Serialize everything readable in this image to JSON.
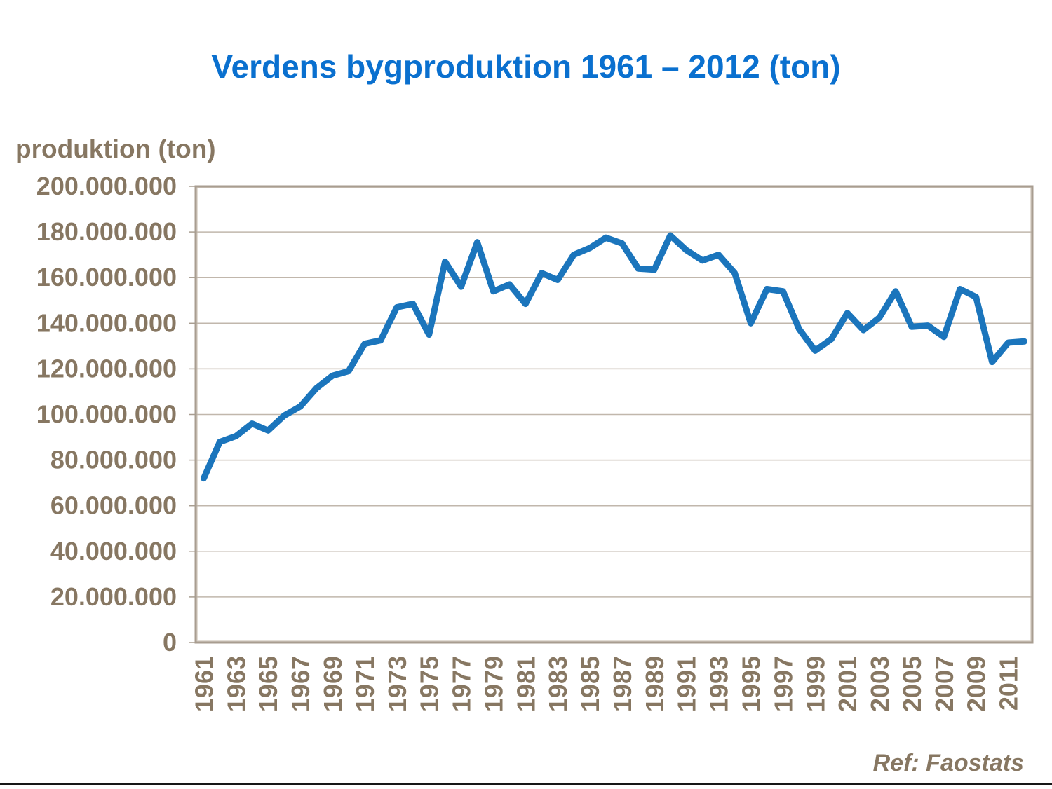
{
  "page": {
    "background": "#ffffff",
    "footer_rule_color": "#171717"
  },
  "chart_data": {
    "type": "line",
    "title": "Verdens bygproduktion 1961 – 2012 (ton)",
    "title_color": "#0a70cf",
    "ylabel": "produktion (ton)",
    "ref": "Ref: Faostats",
    "axis_text_color": "#877762",
    "line_color": "#1b75bc",
    "grid": true,
    "grid_color": "#c1b7ac",
    "frame_color": "#a89d90",
    "frame_inner_color": "#d8d0c6",
    "legend": "none",
    "ylim": [
      0,
      200000000
    ],
    "ytick_interval": 20000000,
    "ytick_labels": [
      "0",
      "20.000.000",
      "40.000.000",
      "60.000.000",
      "80.000.000",
      "100.000.000",
      "120.000.000",
      "140.000.000",
      "160.000.000",
      "180.000.000",
      "200.000.000"
    ],
    "xtick_labels": [
      "1961",
      "1963",
      "1965",
      "1967",
      "1969",
      "1971",
      "1973",
      "1975",
      "1977",
      "1979",
      "1981",
      "1983",
      "1985",
      "1987",
      "1989",
      "1991",
      "1993",
      "1995",
      "1997",
      "1999",
      "2001",
      "2003",
      "2005",
      "2007",
      "2009",
      "2011"
    ],
    "x": [
      1961,
      1962,
      1963,
      1964,
      1965,
      1966,
      1967,
      1968,
      1969,
      1970,
      1971,
      1972,
      1973,
      1974,
      1975,
      1976,
      1977,
      1978,
      1979,
      1980,
      1981,
      1982,
      1983,
      1984,
      1985,
      1986,
      1987,
      1988,
      1989,
      1990,
      1991,
      1992,
      1993,
      1994,
      1995,
      1996,
      1997,
      1998,
      1999,
      2000,
      2001,
      2002,
      2003,
      2004,
      2005,
      2006,
      2007,
      2008,
      2009,
      2010,
      2011,
      2012
    ],
    "values": [
      72000000,
      88000000,
      90500000,
      96000000,
      93000000,
      99500000,
      103500000,
      111500000,
      117000000,
      119000000,
      131000000,
      132500000,
      147000000,
      148500000,
      135000000,
      167000000,
      156000000,
      175500000,
      154000000,
      157000000,
      148500000,
      162000000,
      159000000,
      170000000,
      173000000,
      177500000,
      175000000,
      164000000,
      163500000,
      178500000,
      172000000,
      167500000,
      170000000,
      162000000,
      140000000,
      155000000,
      154000000,
      137500000,
      128000000,
      133000000,
      144500000,
      137000000,
      142500000,
      154000000,
      138500000,
      139000000,
      134000000,
      155000000,
      151500000,
      123000000,
      131500000,
      132000000
    ]
  }
}
